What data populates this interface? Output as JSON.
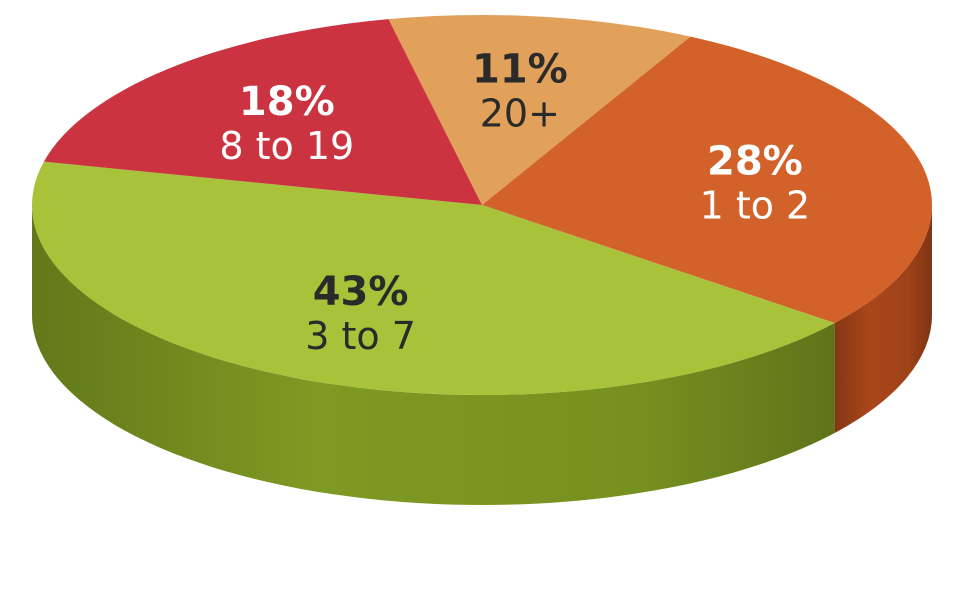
{
  "chart_data": {
    "type": "pie",
    "style": "3d",
    "start_angle": -102,
    "slices": [
      {
        "label": "20+",
        "percent_label": "11%",
        "value": 11,
        "color": "#E1A15A",
        "side_color": "#B97A36",
        "label_color": "#2a2a2a"
      },
      {
        "label": "1 to 2",
        "percent_label": "28%",
        "value": 28,
        "color": "#D2622A",
        "side_color": "#A9461A",
        "label_color": "#ffffff"
      },
      {
        "label": "3 to 7",
        "percent_label": "43%",
        "value": 43,
        "color": "#A8C23A",
        "side_color": "#7E9A22",
        "label_color": "#2a2a2a"
      },
      {
        "label": "8 to 19",
        "percent_label": "18%",
        "value": 18,
        "color": "#CC3341",
        "side_color": "#A0222E",
        "label_color": "#ffffff"
      }
    ]
  }
}
